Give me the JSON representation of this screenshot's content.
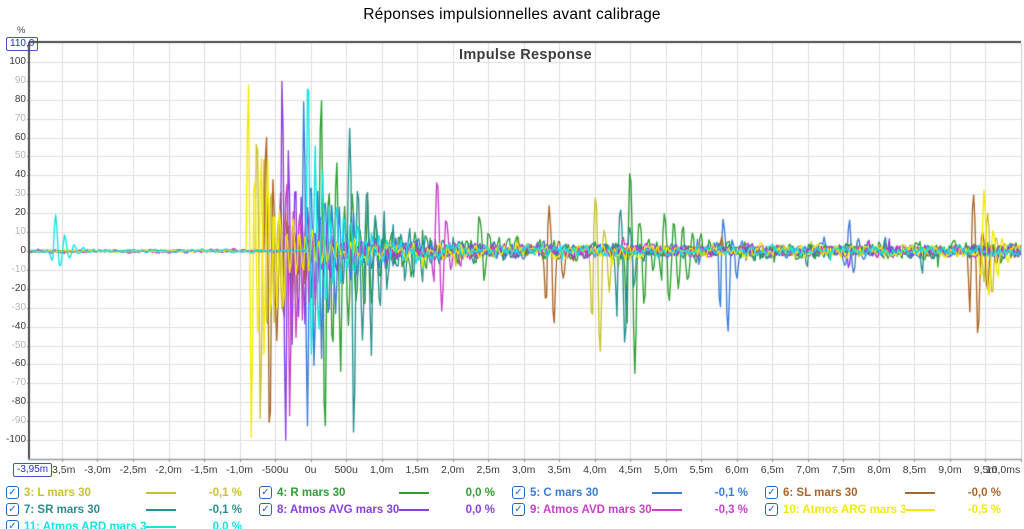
{
  "chart": {
    "title": "Réponses impulsionnelles avant calibrage",
    "inner_title": "Impulse Response",
    "y_axis": {
      "unit": "%",
      "min": -110,
      "max": 110,
      "step": 10,
      "max_label": "110,0",
      "ticks": [
        100,
        90,
        80,
        70,
        60,
        50,
        40,
        30,
        20,
        10,
        0,
        -10,
        -20,
        -30,
        -40,
        -50,
        -60,
        -70,
        -80,
        -90,
        -100
      ]
    },
    "x_axis": {
      "unit": "ms",
      "min_ms": -3.95,
      "max_ms": 10.0,
      "min_label": "-3,95m",
      "ticks": [
        {
          "t": -3.5,
          "label": "-3,5m"
        },
        {
          "t": -3.0,
          "label": "-3,0m"
        },
        {
          "t": -2.5,
          "label": "-2,5m"
        },
        {
          "t": -2.0,
          "label": "-2,0m"
        },
        {
          "t": -1.5,
          "label": "-1,5m"
        },
        {
          "t": -1.0,
          "label": "-1,0m"
        },
        {
          "t": -0.5,
          "label": "-500u"
        },
        {
          "t": 0.0,
          "label": "0u"
        },
        {
          "t": 0.5,
          "label": "500u"
        },
        {
          "t": 1.0,
          "label": "1,0m"
        },
        {
          "t": 1.5,
          "label": "1,5m"
        },
        {
          "t": 2.0,
          "label": "2,0m"
        },
        {
          "t": 2.5,
          "label": "2,5m"
        },
        {
          "t": 3.0,
          "label": "3,0m"
        },
        {
          "t": 3.5,
          "label": "3,5m"
        },
        {
          "t": 4.0,
          "label": "4,0m"
        },
        {
          "t": 4.5,
          "label": "4,5m"
        },
        {
          "t": 5.0,
          "label": "5,0m"
        },
        {
          "t": 5.5,
          "label": "5,5m"
        },
        {
          "t": 6.0,
          "label": "6,0m"
        },
        {
          "t": 6.5,
          "label": "6,5m"
        },
        {
          "t": 7.0,
          "label": "7,0m"
        },
        {
          "t": 7.5,
          "label": "7,5m"
        },
        {
          "t": 8.0,
          "label": "8,0m"
        },
        {
          "t": 8.5,
          "label": "8,5m"
        },
        {
          "t": 9.0,
          "label": "9,0m"
        },
        {
          "t": 9.5,
          "label": "9,5m"
        },
        {
          "t": 10.0,
          "label": "10,0ms"
        }
      ]
    },
    "colors": {
      "grid": "#dedede",
      "border_dark": "#4a4a4a",
      "border_light": "#9a9a9a",
      "tick_major": "#3a3a3a",
      "tick_minor": "#b4b4b4",
      "input_box": "#2233bb",
      "checkbox": "#2268c8"
    }
  },
  "chart_data": {
    "type": "line",
    "title": "Impulse Response",
    "xlabel_unit": "ms",
    "ylabel_unit": "%",
    "xlim": [
      -3.95,
      10.0
    ],
    "ylim": [
      -110,
      110
    ],
    "grid": true,
    "legend_position": "bottom",
    "series": [
      {
        "label": "3: L mars 30",
        "value": "-0,1 %",
        "color": "#c9c22f",
        "checked": true,
        "synth": {
          "seed": 11,
          "noise_pre": 0.7,
          "noise_post": 4.5,
          "burst": {
            "t0": -0.78,
            "peak_pos": 72,
            "peak_neg": 88,
            "tau": 0.32,
            "period": 0.1
          },
          "events": [
            {
              "t": 3.98,
              "up": 30,
              "down": 55,
              "tau": 0.12
            },
            {
              "t": 9.5,
              "up": 22,
              "down": 24,
              "tau": 0.12
            }
          ]
        }
      },
      {
        "label": "4: R mars 30",
        "value": "0,0 %",
        "color": "#2f9e33",
        "checked": true,
        "synth": {
          "seed": 22,
          "noise_pre": 0.6,
          "noise_post": 7.0,
          "burst": {
            "t0": 0.12,
            "peak_pos": 80,
            "peak_neg": 100,
            "tau": 0.5,
            "period": 0.11
          },
          "events": [
            {
              "t": 4.47,
              "up": 40,
              "down": 68,
              "tau": 0.15
            },
            {
              "t": 4.95,
              "up": 24,
              "down": 26,
              "tau": 0.3
            },
            {
              "t": 2.35,
              "up": 16,
              "down": 14,
              "tau": 0.2
            }
          ]
        }
      },
      {
        "label": "5: C mars 30",
        "value": "-0,1 %",
        "color": "#3b7cd6",
        "checked": true,
        "synth": {
          "seed": 33,
          "noise_pre": 0.6,
          "noise_post": 5.5,
          "burst": {
            "t0": -0.12,
            "peak_pos": 78,
            "peak_neg": 100,
            "tau": 0.42,
            "period": 0.1
          },
          "events": [
            {
              "t": 5.78,
              "up": 20,
              "down": 42,
              "tau": 0.12
            },
            {
              "t": 7.55,
              "up": 16,
              "down": 14,
              "tau": 0.2
            }
          ]
        }
      },
      {
        "label": "6: SL mars 30",
        "value": "-0,0 %",
        "color": "#a9662a",
        "checked": true,
        "synth": {
          "seed": 44,
          "noise_pre": 0.6,
          "noise_post": 4.0,
          "burst": {
            "t0": -0.65,
            "peak_pos": 64,
            "peak_neg": 100,
            "tau": 0.3,
            "period": 0.1
          },
          "events": [
            {
              "t": 3.33,
              "up": 22,
              "down": 40,
              "tau": 0.12
            },
            {
              "t": 9.3,
              "up": 28,
              "down": 46,
              "tau": 0.14
            }
          ]
        }
      },
      {
        "label": "7: SR mars 30",
        "value": "-0,1 %",
        "color": "#2a8f8f",
        "checked": true,
        "synth": {
          "seed": 55,
          "noise_pre": 0.6,
          "noise_post": 5.0,
          "burst": {
            "t0": 0.52,
            "peak_pos": 62,
            "peak_neg": 100,
            "tau": 0.45,
            "period": 0.12
          },
          "events": [
            {
              "t": 4.33,
              "up": 25,
              "down": 48,
              "tau": 0.13
            }
          ]
        }
      },
      {
        "label": "8: Atmos AVG mars 30",
        "value": "0,0 %",
        "color": "#8a3fe0",
        "checked": true,
        "synth": {
          "seed": 66,
          "noise_pre": 0.7,
          "noise_post": 4.5,
          "burst": {
            "t0": -0.42,
            "peak_pos": 101,
            "peak_neg": 100,
            "tau": 0.3,
            "period": 0.09
          },
          "events": []
        }
      },
      {
        "label": "9: Atmos AVD mars 30",
        "value": "-0,3 %",
        "color": "#c93fc9",
        "checked": true,
        "synth": {
          "seed": 77,
          "noise_pre": 1.6,
          "noise_post": 4.5,
          "burst": {
            "t0": -0.36,
            "peak_pos": 45,
            "peak_neg": 92,
            "tau": 0.3,
            "period": 0.09
          },
          "events": [
            {
              "t": 1.75,
              "up": 37,
              "down": 30,
              "tau": 0.15
            }
          ]
        }
      },
      {
        "label": "10: Atmos ARG mars 30",
        "value": "-0,5 %",
        "color": "#f2ea00",
        "checked": true,
        "synth": {
          "seed": 88,
          "noise_pre": 0.9,
          "noise_post": 5.0,
          "burst": {
            "t0": -0.9,
            "peak_pos": 100,
            "peak_neg": 100,
            "tau": 0.38,
            "period": 0.09
          },
          "events": [
            {
              "t": 9.45,
              "up": 30,
              "down": 28,
              "tau": 0.15
            }
          ]
        }
      },
      {
        "label": "11: Atmos ARD mars 30",
        "value": "0,0 %",
        "color": "#12e3e3",
        "checked": true,
        "synth": {
          "seed": 99,
          "noise_pre": 1.3,
          "noise_post": 4.0,
          "burst": {
            "t0": -0.06,
            "peak_pos": 100,
            "peak_neg": 58,
            "tau": 0.4,
            "period": 0.1
          },
          "events": [
            {
              "t": -3.62,
              "up": 19,
              "down": 9,
              "tau": 0.15
            }
          ]
        }
      }
    ]
  }
}
